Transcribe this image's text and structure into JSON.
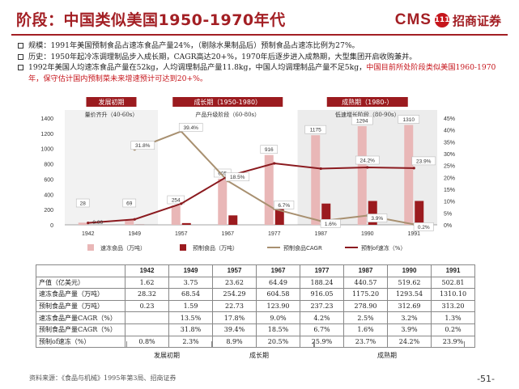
{
  "page": {
    "title": "阶段：中国类似美国1950-1970年代",
    "logo_text": "CMS",
    "logo_badge": "111",
    "logo_cn": "招商证券",
    "page_number": "-51-",
    "source": "资料来源：《食品与机械》1995年第3局、招商证券"
  },
  "bullets": [
    {
      "text": "规模：1991年美国预制食品占速冻食品产量24%，（剔除水果制品后）预制食品占速冻比例为27%。",
      "highlight": ""
    },
    {
      "text": "历史：1950年起冷冻调理制品步入成长期，CAGR高达20+%，1970年后逐步进入成熟期，大型集团开启收购兼并。",
      "highlight": ""
    },
    {
      "text": "1992年美国人均速冻食品产量在52kg，人均调理制品产量11.8kg，中国人均调理制品产量不足5kg，",
      "highlight": "中国目前所处阶段类似美国1960-1970年，保守估计国内预制菜未来增速预计可达到20+%。"
    }
  ],
  "chart_data": {
    "type": "bar",
    "categories": [
      "1942",
      "1949",
      "1957",
      "1967",
      "1977",
      "1987",
      "1990",
      "1991"
    ],
    "series": [
      {
        "name": "速冻食品（万吨）",
        "type": "bar",
        "axis": "left",
        "color": "#e9b7b7",
        "values": [
          28.32,
          68.54,
          254.29,
          604.58,
          916.05,
          1175.2,
          1293.54,
          1310.1
        ]
      },
      {
        "name": "预制食品（万吨）",
        "type": "bar",
        "axis": "left",
        "color": "#9b1b1f",
        "values": [
          0.23,
          1.59,
          22.73,
          123.9,
          237.23,
          278.9,
          312.69,
          313.2
        ]
      },
      {
        "name": "预制食品CAGR",
        "type": "line",
        "axis": "right",
        "color": "#a89070",
        "values": [
          null,
          31.8,
          39.4,
          18.5,
          6.7,
          1.6,
          3.9,
          0.2
        ]
      },
      {
        "name": "预制of速冻（%）",
        "type": "line",
        "axis": "right",
        "color": "#8b1a1f",
        "values": [
          0.8,
          2.3,
          8.9,
          20.5,
          25.9,
          23.7,
          24.2,
          23.9
        ]
      }
    ],
    "bar_labels": [
      "28",
      "69",
      "254",
      "605",
      "916",
      "1175",
      "1294",
      "1310"
    ],
    "cagr_labels": [
      "",
      "31.8%",
      "39.4%",
      "18.5%",
      "6.7%",
      "1.6%",
      "3.9%",
      "0.2%"
    ],
    "share_labels": [
      {
        "index": 6,
        "text": "24.2%"
      },
      {
        "index": 7,
        "text": "23.9%"
      }
    ],
    "ylim_left": [
      0,
      1400
    ],
    "yticks_left": [
      "0",
      "200",
      "400",
      "600",
      "800",
      "1000",
      "1200",
      "1400"
    ],
    "ylim_right": [
      0,
      45
    ],
    "yticks_right": [
      "0%",
      "5%",
      "10%",
      "15%",
      "20%",
      "25%",
      "30%",
      "35%",
      "40%",
      "45%"
    ],
    "phases": [
      {
        "label": "发展初期",
        "sub": "量价齐升（40-60s）",
        "from": 0,
        "to": 1
      },
      {
        "label": "成长期（1950-1980）",
        "sub": "产品升级阶段（60-80s）",
        "from": 2,
        "to": 4
      },
      {
        "label": "成熟期（1980-）",
        "sub": "低速增长阶段（80-90s）",
        "from": 5,
        "to": 7
      }
    ],
    "legend_position": "bottom"
  },
  "table": {
    "headers": [
      "",
      "1942",
      "1949",
      "1957",
      "1967",
      "1977",
      "1987",
      "1990",
      "1991"
    ],
    "rows": [
      [
        "产值（亿美元）",
        "1.62",
        "3.75",
        "23.62",
        "64.49",
        "188.24",
        "440.57",
        "519.62",
        "502.81"
      ],
      [
        "速冻食品产量（万吨）",
        "28.32",
        "68.54",
        "254.29",
        "604.58",
        "916.05",
        "1175.20",
        "1293.54",
        "1310.10"
      ],
      [
        "预制食品产量（万吨）",
        "0.23",
        "1.59",
        "22.73",
        "123.90",
        "237.23",
        "278.90",
        "312.69",
        "313.20"
      ],
      [
        "速冻食品产量CAGR（%）",
        "",
        "13.5%",
        "17.8%",
        "9.0%",
        "4.2%",
        "2.5%",
        "3.2%",
        "1.3%"
      ],
      [
        "预制食品产量CAGR（%）",
        "",
        "31.8%",
        "39.4%",
        "18.5%",
        "6.7%",
        "1.6%",
        "3.9%",
        "0.2%"
      ],
      [
        "预制of速冻（%）",
        "0.8%",
        "2.3%",
        "8.9%",
        "20.5%",
        "25.9%",
        "23.7%",
        "24.2%",
        "23.9%"
      ]
    ]
  },
  "phase_footer": [
    "发展初期",
    "成长期",
    "成熟期"
  ]
}
